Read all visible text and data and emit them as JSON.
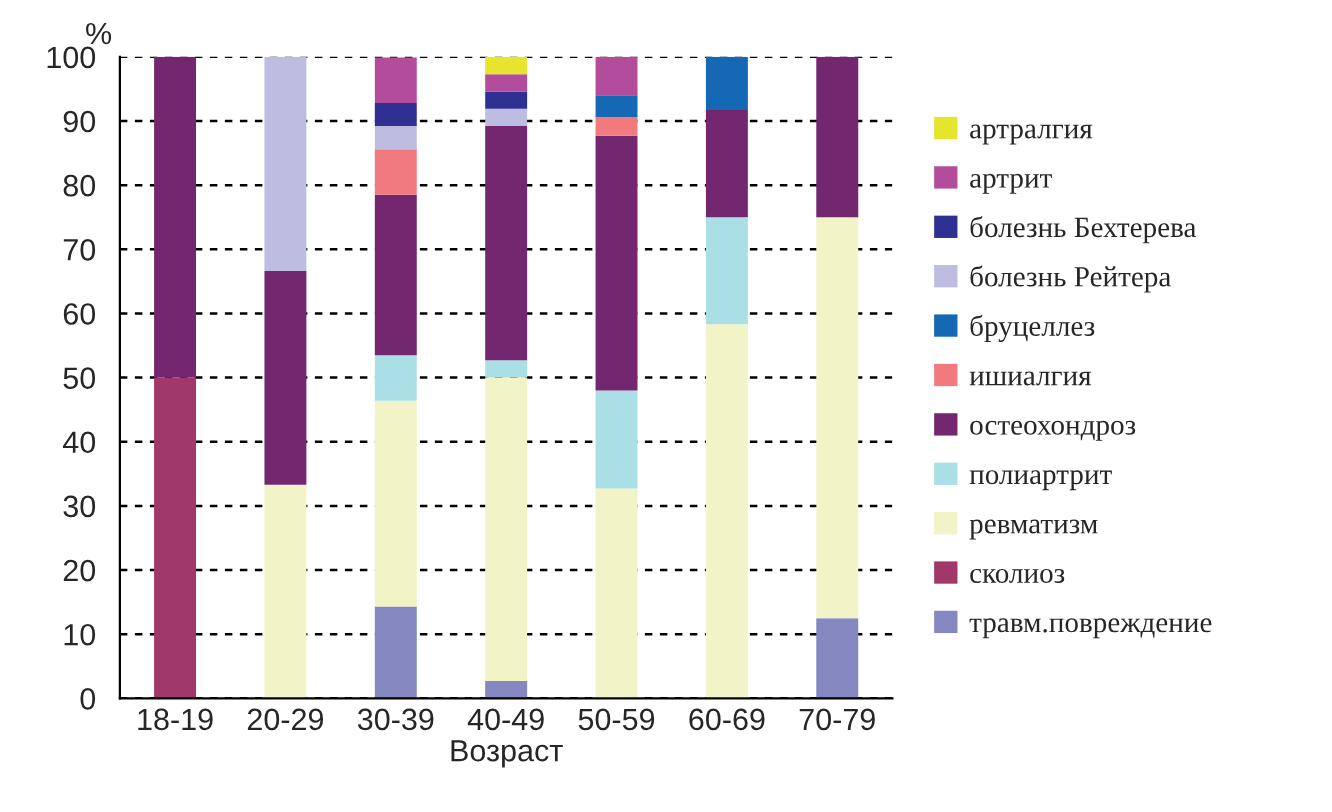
{
  "chart_data": {
    "type": "bar",
    "stacked": true,
    "xlabel": "Возраст",
    "ylabel": "%",
    "categories": [
      "18-19",
      "20-29",
      "30-39",
      "40-49",
      "50-59",
      "60-69",
      "70-79"
    ],
    "ylim": [
      0,
      100
    ],
    "yticks": [
      0,
      10,
      20,
      30,
      40,
      50,
      60,
      70,
      80,
      90,
      100
    ],
    "grid": "y",
    "legend": "right",
    "series": [
      {
        "name": "травм.повреждение",
        "color": "#8487c0",
        "values": [
          null,
          null,
          14.3,
          2.7,
          null,
          null,
          12.5
        ]
      },
      {
        "name": "сколиоз",
        "color": "#a0386a",
        "values": [
          50,
          null,
          null,
          null,
          null,
          null,
          null
        ]
      },
      {
        "name": "ревматизм",
        "color": "#f3f3c8",
        "values": [
          null,
          33.3,
          32.1,
          47.3,
          32.7,
          58.3,
          62.5
        ]
      },
      {
        "name": "полиартрит",
        "color": "#aadfe5",
        "values": [
          null,
          null,
          7.1,
          2.7,
          15.3,
          16.7,
          null
        ]
      },
      {
        "name": "остеохондроз",
        "color": "#72276e",
        "values": [
          50,
          33.3,
          25.0,
          36.5,
          39.7,
          16.7,
          25
        ]
      },
      {
        "name": "ишиалгия",
        "color": "#f07a7e",
        "values": [
          null,
          null,
          7.1,
          null,
          2.9,
          null,
          null
        ]
      },
      {
        "name": "бруцеллез",
        "color": "#1468b4",
        "values": [
          null,
          null,
          null,
          null,
          3.4,
          8.3,
          null
        ]
      },
      {
        "name": "болезнь Рейтера",
        "color": "#bcbde0",
        "values": [
          null,
          33.4,
          3.6,
          2.7,
          null,
          null,
          null
        ]
      },
      {
        "name": "болезнь Бехтерева",
        "color": "#2e3192",
        "values": [
          null,
          null,
          3.6,
          2.7,
          null,
          null,
          null
        ]
      },
      {
        "name": "артрит",
        "color": "#b44c9c",
        "values": [
          null,
          null,
          7.1,
          2.7,
          6.0,
          null,
          null
        ]
      },
      {
        "name": "артралгия",
        "color": "#e5e52e",
        "values": [
          null,
          null,
          null,
          2.7,
          null,
          null,
          null
        ]
      }
    ]
  }
}
